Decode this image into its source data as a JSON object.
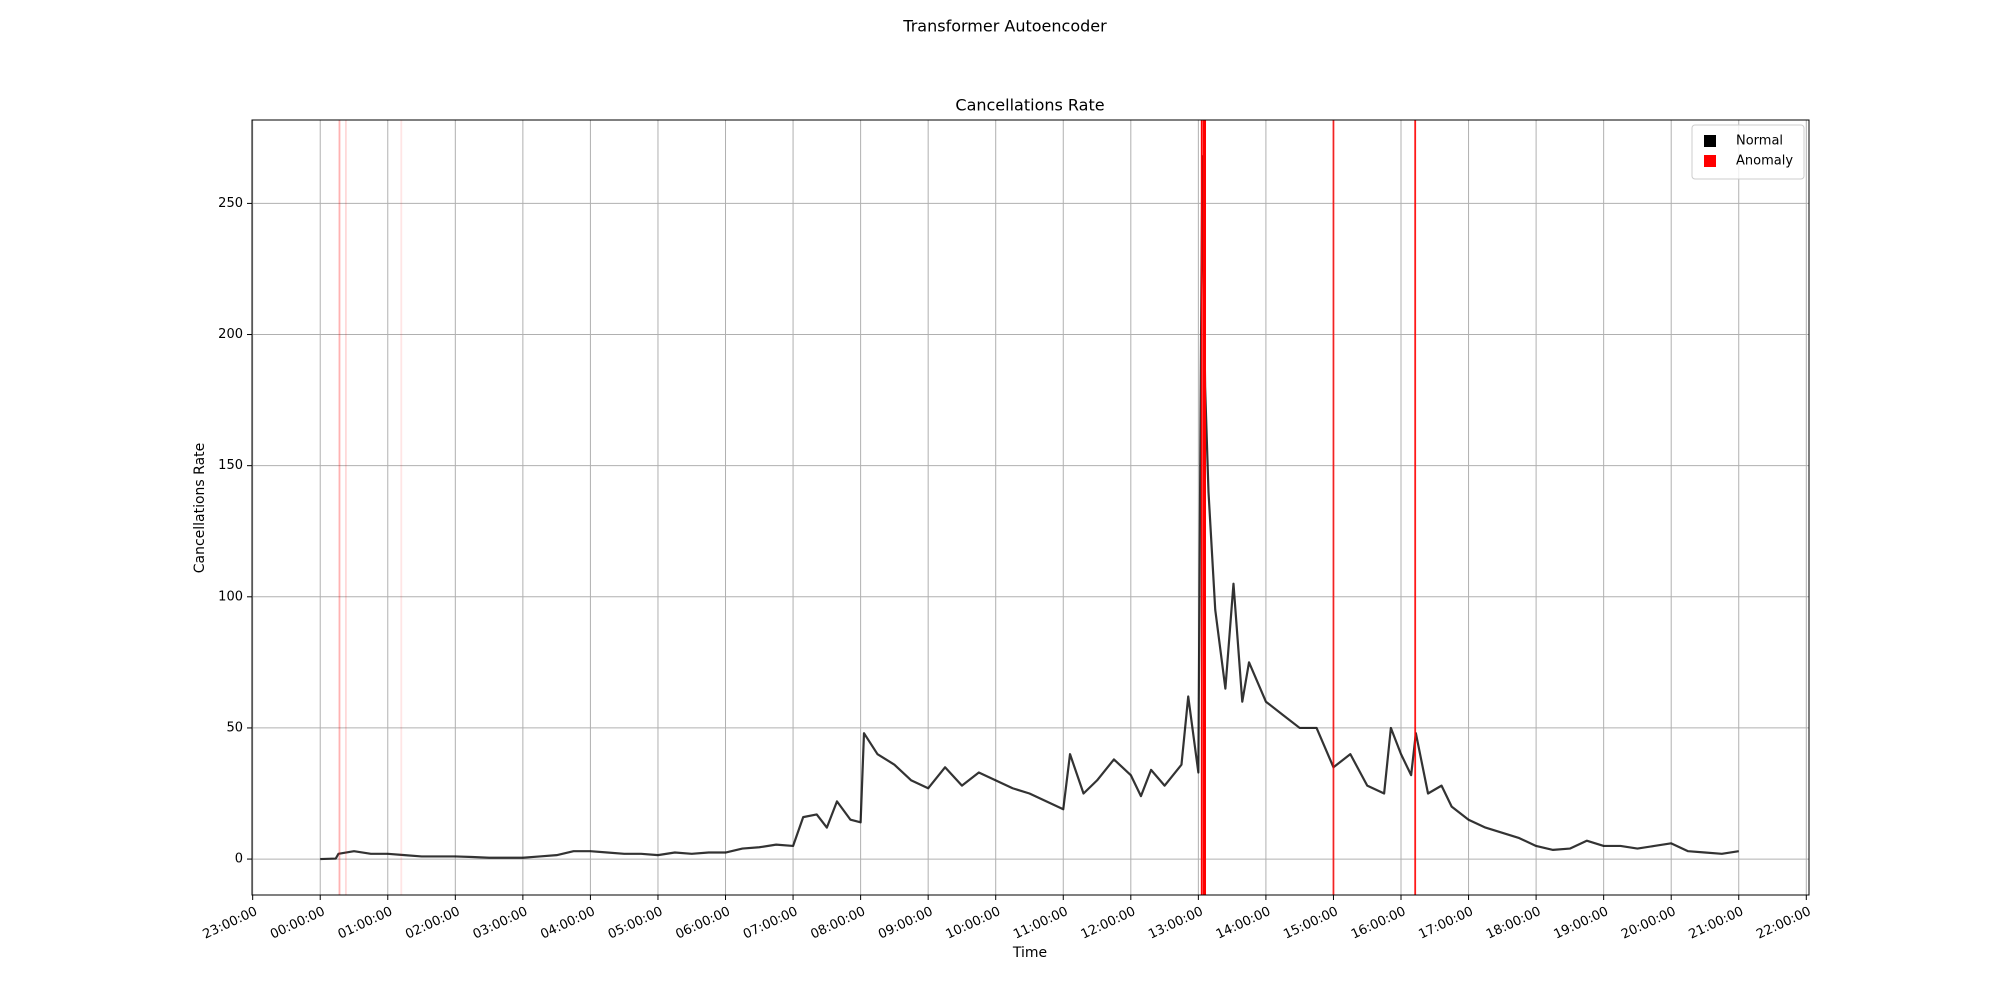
{
  "chart_data": {
    "type": "line",
    "suptitle": "Transformer Autoencoder",
    "title": "Cancellations Rate",
    "xlabel": "Time",
    "ylabel": "Cancellations Rate",
    "x": [
      0,
      0.23,
      0.27,
      0.5,
      0.75,
      1,
      1.25,
      1.5,
      1.75,
      2,
      2.25,
      2.5,
      2.75,
      3,
      3.25,
      3.5,
      3.75,
      4,
      4.25,
      4.5,
      4.75,
      5,
      5.25,
      5.5,
      5.75,
      6,
      6.25,
      6.5,
      6.75,
      7,
      7.15,
      7.35,
      7.5,
      7.65,
      7.85,
      8,
      8.05,
      8.25,
      8.5,
      8.75,
      9,
      9.25,
      9.5,
      9.75,
      10,
      10.25,
      10.5,
      10.75,
      11,
      11.1,
      11.3,
      11.5,
      11.75,
      12,
      12.15,
      12.3,
      12.5,
      12.75,
      12.85,
      13,
      13.04,
      13.06,
      13.1,
      13.15,
      13.25,
      13.4,
      13.52,
      13.65,
      13.75,
      14,
      14.25,
      14.5,
      14.75,
      15,
      15.25,
      15.5,
      15.75,
      15.85,
      16,
      16.15,
      16.22,
      16.4,
      16.6,
      16.75,
      17,
      17.25,
      17.5,
      17.75,
      18,
      18.25,
      18.5,
      18.75,
      19,
      19.25,
      19.5,
      19.75,
      20,
      20.25,
      20.5,
      20.75,
      21
    ],
    "series": [
      {
        "name": "Normal",
        "color": "#000000",
        "opacity": 0.8,
        "values": [
          0,
          0.2,
          2,
          3,
          2,
          2,
          1.5,
          1,
          1,
          1,
          0.8,
          0.5,
          0.5,
          0.5,
          1,
          1.5,
          3,
          3,
          2.5,
          2,
          2,
          1.5,
          2.5,
          2,
          2.5,
          2.5,
          4,
          4.5,
          5.5,
          5,
          16,
          17,
          12,
          22,
          15,
          14,
          48,
          40,
          36,
          30,
          27,
          35,
          28,
          33,
          30,
          27,
          25,
          22,
          19,
          40,
          25,
          30,
          38,
          32,
          24,
          34,
          28,
          36,
          62,
          33,
          200,
          268,
          180,
          140,
          95,
          65,
          105,
          60,
          75,
          60,
          55,
          50,
          50,
          35,
          40,
          28,
          25,
          50,
          40,
          32,
          48,
          25,
          28,
          20,
          15,
          12,
          10,
          8,
          5,
          3.5,
          4,
          7,
          5,
          5,
          4,
          5,
          6,
          3,
          2.5,
          2,
          3
        ]
      },
      {
        "name": "Anomaly",
        "color": "#ff0000",
        "x": [
          0.285,
          0.38,
          1.2,
          13.05,
          13.08,
          13.1,
          15.0,
          16.21
        ],
        "opacity": [
          0.3,
          0.15,
          0.1,
          1,
          1,
          1,
          0.8,
          0.9
        ]
      }
    ],
    "xlim": [
      -1.01,
      22.04
    ],
    "ylim": [
      -13.7,
      281.8
    ],
    "yticks": [
      0,
      50,
      100,
      150,
      200,
      250
    ],
    "xticks": [
      {
        "value": -1,
        "label": "23:00:00"
      },
      {
        "value": 0,
        "label": "00:00:00"
      },
      {
        "value": 1,
        "label": "01:00:00"
      },
      {
        "value": 2,
        "label": "02:00:00"
      },
      {
        "value": 3,
        "label": "03:00:00"
      },
      {
        "value": 4,
        "label": "04:00:00"
      },
      {
        "value": 5,
        "label": "05:00:00"
      },
      {
        "value": 6,
        "label": "06:00:00"
      },
      {
        "value": 7,
        "label": "07:00:00"
      },
      {
        "value": 8,
        "label": "08:00:00"
      },
      {
        "value": 9,
        "label": "09:00:00"
      },
      {
        "value": 10,
        "label": "10:00:00"
      },
      {
        "value": 11,
        "label": "11:00:00"
      },
      {
        "value": 12,
        "label": "12:00:00"
      },
      {
        "value": 13,
        "label": "13:00:00"
      },
      {
        "value": 14,
        "label": "14:00:00"
      },
      {
        "value": 15,
        "label": "15:00:00"
      },
      {
        "value": 16,
        "label": "16:00:00"
      },
      {
        "value": 17,
        "label": "17:00:00"
      },
      {
        "value": 18,
        "label": "18:00:00"
      },
      {
        "value": 19,
        "label": "19:00:00"
      },
      {
        "value": 20,
        "label": "20:00:00"
      },
      {
        "value": 21,
        "label": "21:00:00"
      },
      {
        "value": 22,
        "label": "22:00:00"
      }
    ],
    "grid": true,
    "legend": "upper right"
  }
}
